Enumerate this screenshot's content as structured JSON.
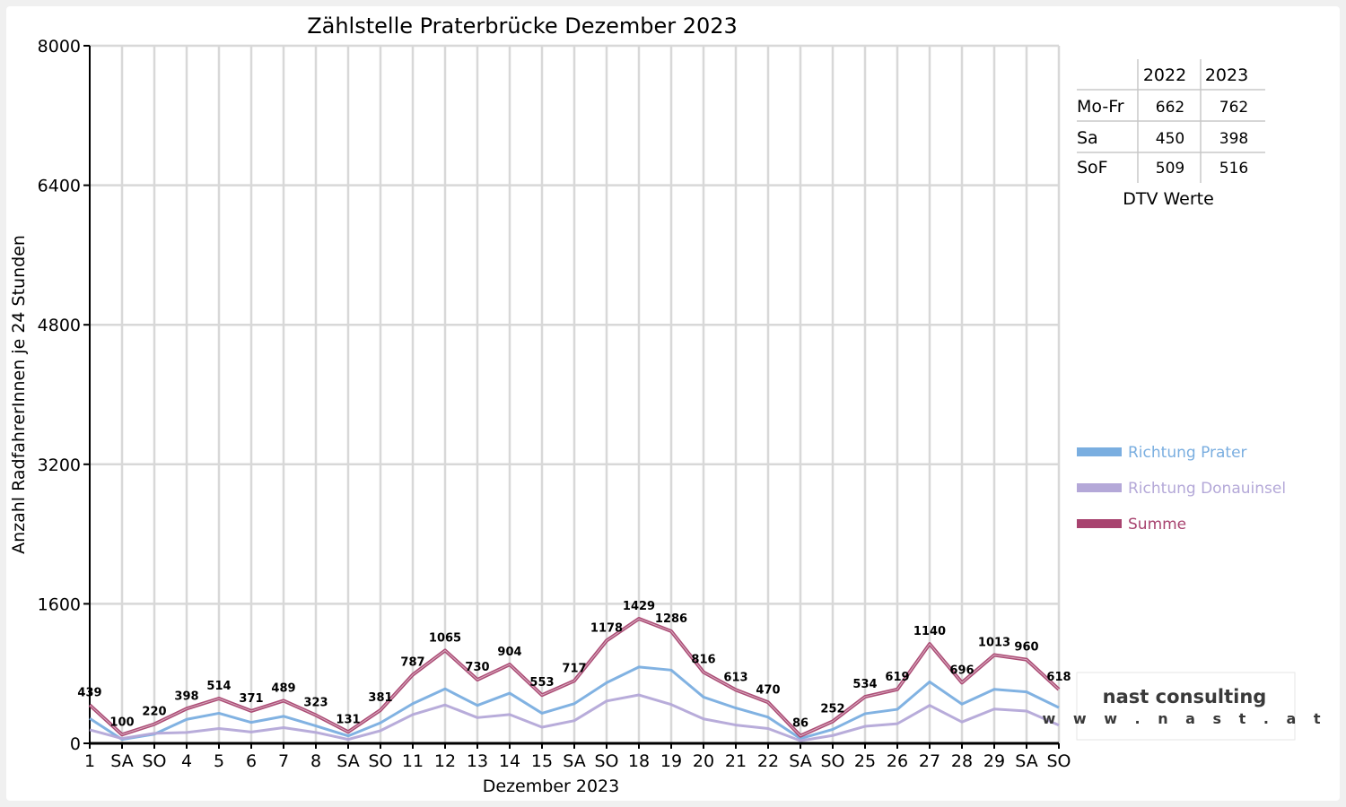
{
  "colors": {
    "prater": "#7aaee0",
    "donauinsel": "#b4a8d8",
    "summe": "#a8436f",
    "weekend_label": "#ff0000",
    "weekday_label": "#000000",
    "grid": "#d8d8d8"
  },
  "chart_data": {
    "type": "line",
    "title": "Zählstelle Praterbrücke Dezember 2023",
    "xlabel": "Dezember 2023",
    "ylabel": "Anzahl RadfahrerInnen je 24 Stunden",
    "ylim": [
      0,
      8000
    ],
    "yticks": [
      "0",
      "1600",
      "3200",
      "4800",
      "6400",
      "8000"
    ],
    "grid": true,
    "legend_position": "right",
    "categories": [
      "1",
      "SA",
      "SO",
      "4",
      "5",
      "6",
      "7",
      "8",
      "SA",
      "SO",
      "11",
      "12",
      "13",
      "14",
      "15",
      "SA",
      "SO",
      "18",
      "19",
      "20",
      "21",
      "22",
      "SA",
      "SO",
      "25",
      "26",
      "27",
      "28",
      "29",
      "SA",
      "SO"
    ],
    "category_red": [
      false,
      false,
      true,
      false,
      false,
      false,
      false,
      true,
      false,
      true,
      false,
      false,
      false,
      false,
      false,
      false,
      true,
      false,
      false,
      false,
      false,
      false,
      false,
      true,
      true,
      true,
      false,
      false,
      false,
      false,
      true
    ],
    "series": [
      {
        "name": "Richtung Prater",
        "color_key": "prater",
        "values": [
          285,
          45,
          105,
          275,
          345,
          240,
          310,
          200,
          85,
          235,
          455,
          625,
          435,
          575,
          345,
          455,
          695,
          875,
          840,
          530,
          405,
          300,
          55,
          160,
          340,
          390,
          705,
          450,
          620,
          590,
          410
        ]
      },
      {
        "name": "Richtung Donauinsel",
        "color_key": "donauinsel",
        "values": [
          155,
          55,
          115,
          125,
          170,
          130,
          180,
          125,
          45,
          145,
          330,
          440,
          295,
          330,
          185,
          260,
          485,
          555,
          445,
          280,
          210,
          170,
          30,
          90,
          195,
          225,
          435,
          245,
          393,
          370,
          208
        ]
      },
      {
        "name": "Summe",
        "color_key": "summe",
        "values": [
          439,
          100,
          220,
          398,
          514,
          371,
          489,
          323,
          131,
          381,
          787,
          1065,
          730,
          904,
          553,
          717,
          1178,
          1429,
          1286,
          816,
          613,
          470,
          86,
          252,
          534,
          619,
          1140,
          696,
          1013,
          960,
          618
        ]
      }
    ],
    "summe_labels": [
      "439",
      "100",
      "220",
      "398",
      "514",
      "371",
      "489",
      "323",
      "131",
      "381",
      "787",
      "1065",
      "730",
      "904",
      "553",
      "717",
      "1178",
      "1429",
      "1286",
      "816",
      "613",
      "470",
      "86",
      "252",
      "534",
      "619",
      "1140",
      "696",
      "1013",
      "960",
      "618"
    ]
  },
  "dtv_table": {
    "caption": "DTV Werte",
    "columns": [
      "2022",
      "2023"
    ],
    "rows": [
      {
        "label": "Mo-Fr",
        "values": [
          "662",
          "762"
        ]
      },
      {
        "label": "Sa",
        "values": [
          "450",
          "398"
        ]
      },
      {
        "label": "SoF",
        "values": [
          "509",
          "516"
        ]
      }
    ]
  },
  "logo": {
    "name": "nast consulting",
    "url": "w w w . n a s t . a t"
  }
}
